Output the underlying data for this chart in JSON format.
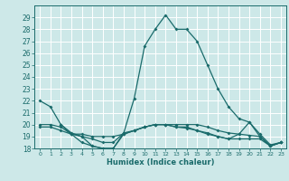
{
  "title": "",
  "xlabel": "Humidex (Indice chaleur)",
  "ylabel": "",
  "bg_color": "#cde8e8",
  "grid_color": "#aed4d4",
  "line_color": "#1a6b6b",
  "xlim": [
    -0.5,
    23.5
  ],
  "ylim": [
    18,
    30
  ],
  "yticks": [
    18,
    19,
    20,
    21,
    22,
    23,
    24,
    25,
    26,
    27,
    28,
    29
  ],
  "xticks": [
    0,
    1,
    2,
    3,
    4,
    5,
    6,
    7,
    8,
    9,
    10,
    11,
    12,
    13,
    14,
    15,
    16,
    17,
    18,
    19,
    20,
    21,
    22,
    23
  ],
  "line1_x": [
    0,
    1,
    2,
    3,
    4,
    5,
    6,
    7,
    8,
    9,
    10,
    11,
    12,
    13,
    14,
    15,
    16,
    17,
    18,
    19,
    20,
    21,
    22,
    23
  ],
  "line1_y": [
    22.0,
    21.5,
    20.0,
    19.2,
    19.0,
    18.2,
    18.0,
    18.0,
    19.3,
    22.2,
    26.6,
    28.0,
    29.2,
    28.0,
    28.0,
    27.0,
    25.0,
    23.0,
    21.5,
    20.5,
    20.2,
    19.0,
    18.2,
    18.5
  ],
  "line2_x": [
    0,
    1,
    2,
    3,
    4,
    5,
    6,
    7,
    8,
    9,
    10,
    11,
    12,
    13,
    14,
    15,
    16,
    17,
    18,
    19,
    20,
    21,
    22,
    23
  ],
  "line2_y": [
    20.0,
    20.0,
    19.8,
    19.2,
    19.2,
    19.0,
    19.0,
    19.0,
    19.2,
    19.5,
    19.8,
    20.0,
    20.0,
    20.0,
    20.0,
    20.0,
    19.8,
    19.5,
    19.3,
    19.2,
    19.1,
    19.0,
    18.2,
    18.5
  ],
  "line3_x": [
    0,
    1,
    2,
    3,
    4,
    5,
    6,
    7,
    8,
    9,
    10,
    11,
    12,
    13,
    14,
    15,
    16,
    17,
    18,
    19,
    20,
    21,
    22,
    23
  ],
  "line3_y": [
    19.8,
    19.8,
    19.5,
    19.2,
    18.5,
    18.2,
    18.0,
    18.0,
    19.2,
    19.5,
    19.8,
    20.0,
    20.0,
    19.8,
    19.8,
    19.5,
    19.2,
    19.0,
    18.8,
    18.8,
    18.8,
    18.8,
    18.2,
    18.5
  ],
  "line4_x": [
    2,
    3,
    4,
    5,
    6,
    7,
    8,
    9,
    10,
    11,
    12,
    13,
    14,
    15,
    16,
    17,
    18,
    19,
    20,
    21,
    22,
    23
  ],
  "line4_y": [
    20.0,
    19.3,
    19.0,
    18.8,
    18.5,
    18.5,
    19.3,
    19.5,
    19.8,
    20.0,
    20.0,
    19.8,
    19.7,
    19.5,
    19.3,
    19.0,
    18.8,
    19.2,
    20.2,
    19.2,
    18.3,
    18.5
  ]
}
